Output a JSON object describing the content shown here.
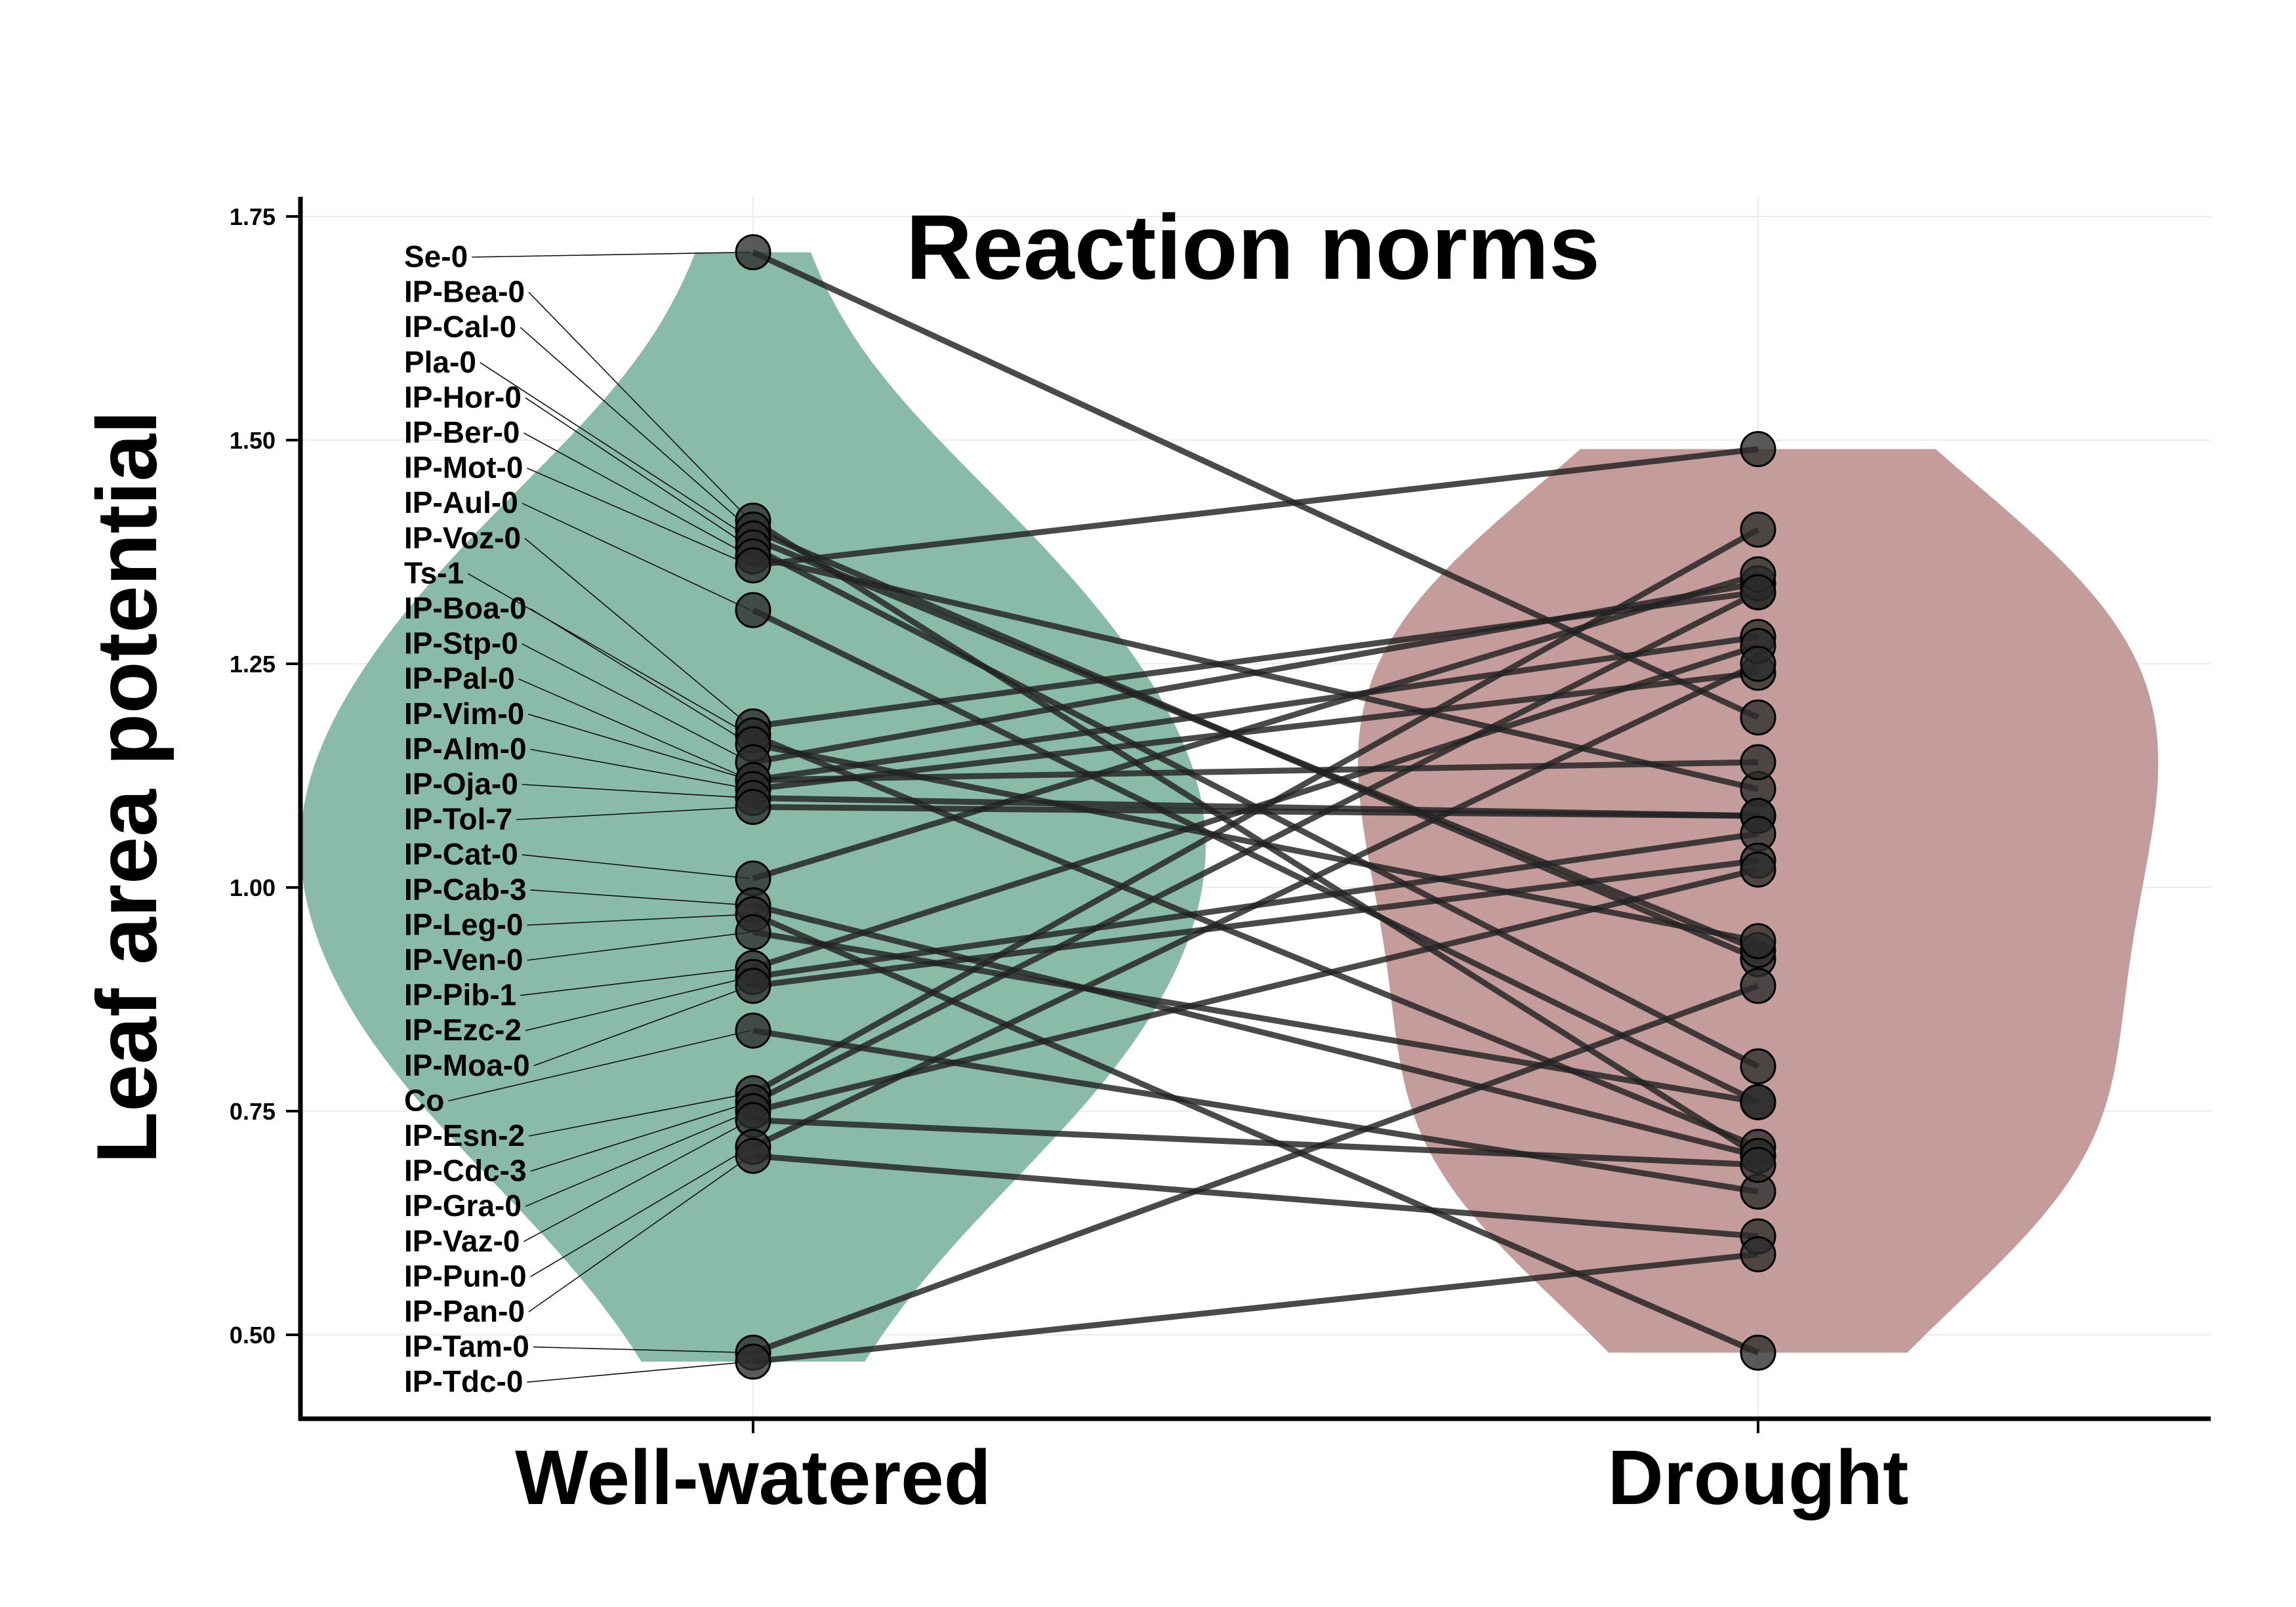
{
  "chart_data": {
    "type": "scatter",
    "title": "Reaction norms",
    "xlabel": "",
    "ylabel": "Leaf area potential",
    "categories": [
      "Well-watered",
      "Drought"
    ],
    "ylim": [
      0.41,
      1.77
    ],
    "yticks": [
      0.5,
      0.75,
      1.0,
      1.25,
      1.5,
      1.75
    ],
    "ytick_labels": [
      "0.50",
      "0.75",
      "1.00",
      "1.25",
      "1.50",
      "1.75"
    ],
    "grid": true,
    "violin_colors": [
      "#89bba8",
      "#c59c9c"
    ],
    "accessions": [
      {
        "name": "Se-0",
        "well_watered": 1.71,
        "drought": 1.19
      },
      {
        "name": "IP-Bea-0",
        "well_watered": 1.41,
        "drought": 0.7
      },
      {
        "name": "IP-Cal-0",
        "well_watered": 1.4,
        "drought": 0.92
      },
      {
        "name": "Pla-0",
        "well_watered": 1.39,
        "drought": 0.93
      },
      {
        "name": "IP-Hor-0",
        "well_watered": 1.38,
        "drought": 0.8
      },
      {
        "name": "IP-Ber-0",
        "well_watered": 1.37,
        "drought": 1.11
      },
      {
        "name": "IP-Mot-0",
        "well_watered": 1.36,
        "drought": 1.49
      },
      {
        "name": "IP-Aul-0",
        "well_watered": 1.31,
        "drought": 0.76
      },
      {
        "name": "IP-Voz-0",
        "well_watered": 1.18,
        "drought": 1.33
      },
      {
        "name": "Ts-1",
        "well_watered": 1.17,
        "drought": 0.71
      },
      {
        "name": "IP-Boa-0",
        "well_watered": 1.16,
        "drought": 0.94
      },
      {
        "name": "IP-Stp-0",
        "well_watered": 1.14,
        "drought": 1.34
      },
      {
        "name": "IP-Pal-0",
        "well_watered": 1.12,
        "drought": 1.28
      },
      {
        "name": "IP-Vim-0",
        "well_watered": 1.12,
        "drought": 1.14
      },
      {
        "name": "IP-Alm-0",
        "well_watered": 1.11,
        "drought": 1.24
      },
      {
        "name": "IP-Oja-0",
        "well_watered": 1.1,
        "drought": 1.08
      },
      {
        "name": "IP-Tol-7",
        "well_watered": 1.09,
        "drought": 1.08
      },
      {
        "name": "IP-Cat-0",
        "well_watered": 1.01,
        "drought": 1.35
      },
      {
        "name": "IP-Cab-3",
        "well_watered": 0.98,
        "drought": 0.7
      },
      {
        "name": "IP-Leg-0",
        "well_watered": 0.97,
        "drought": 0.48
      },
      {
        "name": "IP-Ven-0",
        "well_watered": 0.95,
        "drought": 0.76
      },
      {
        "name": "IP-Pib-1",
        "well_watered": 0.91,
        "drought": 1.27
      },
      {
        "name": "IP-Ezc-2",
        "well_watered": 0.9,
        "drought": 1.06
      },
      {
        "name": "IP-Moa-0",
        "well_watered": 0.89,
        "drought": 1.03
      },
      {
        "name": "Co",
        "well_watered": 0.84,
        "drought": 0.66
      },
      {
        "name": "IP-Esn-2",
        "well_watered": 0.77,
        "drought": 1.4
      },
      {
        "name": "IP-Cdc-3",
        "well_watered": 0.76,
        "drought": 1.33
      },
      {
        "name": "IP-Gra-0",
        "well_watered": 0.75,
        "drought": 1.02
      },
      {
        "name": "IP-Vaz-0",
        "well_watered": 0.74,
        "drought": 0.69
      },
      {
        "name": "IP-Pun-0",
        "well_watered": 0.71,
        "drought": 1.25
      },
      {
        "name": "IP-Pan-0",
        "well_watered": 0.7,
        "drought": 0.61
      },
      {
        "name": "IP-Tam-0",
        "well_watered": 0.48,
        "drought": 0.89
      },
      {
        "name": "IP-Tdc-0",
        "well_watered": 0.47,
        "drought": 0.59
      }
    ]
  }
}
